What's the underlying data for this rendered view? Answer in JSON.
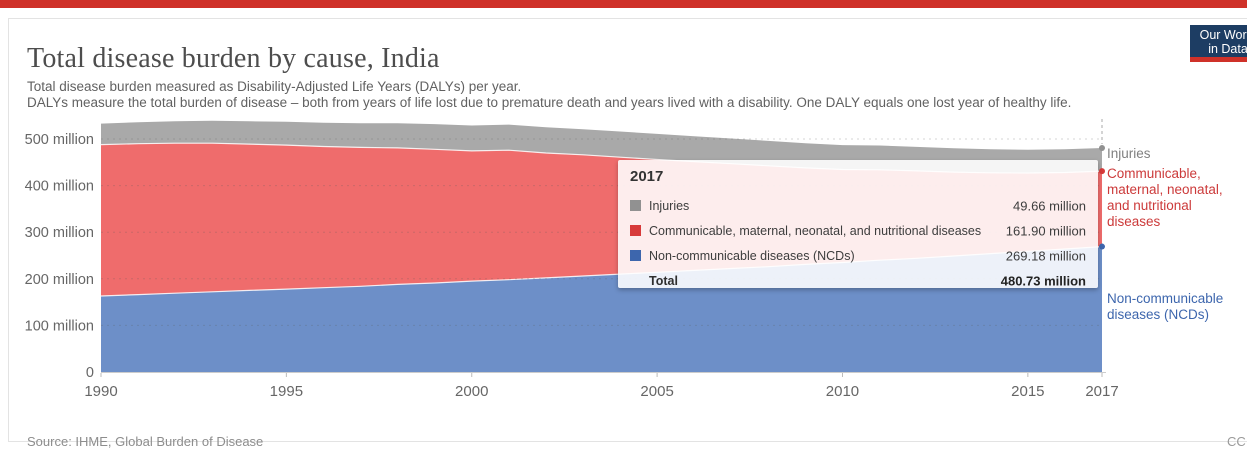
{
  "page": {
    "topbar_color": "#cf3129"
  },
  "header": {
    "title": "Total disease burden by cause, India",
    "subtitle_lines": [
      "Total disease burden measured as Disability-Adjusted Life Years (DALYs) per year.",
      "DALYs measure the total burden of disease – both from years of life lost due to premature death and years lived with a disability. One DALY equals one lost year of healthy life."
    ],
    "logo": {
      "line1": "Our World",
      "line2": "in Data",
      "bg_color": "#1d3d63",
      "accent_color": "#cf3129"
    }
  },
  "chart_data": {
    "type": "area",
    "stacked": true,
    "title": "Total disease burden by cause, India",
    "unit": "DALYs",
    "x": [
      1990,
      1991,
      1992,
      1993,
      1994,
      1995,
      1996,
      1997,
      1998,
      1999,
      2000,
      2001,
      2002,
      2003,
      2004,
      2005,
      2006,
      2007,
      2008,
      2009,
      2010,
      2011,
      2012,
      2013,
      2014,
      2015,
      2016,
      2017
    ],
    "series": [
      {
        "name": "Non-communicable diseases (NCDs)",
        "color": "#3d66ad",
        "area_color": "#6d8fc8",
        "values": [
          163,
          166,
          169,
          172,
          175,
          178,
          181,
          184,
          188,
          191,
          195,
          198,
          202,
          206,
          210,
          214,
          218,
          222,
          226,
          231,
          235,
          240,
          244,
          249,
          254,
          259,
          264,
          269.18
        ]
      },
      {
        "name": "Communicable, maternal, neonatal, and nutritional diseases",
        "color": "#d73a3a",
        "area_color": "#ef6c6c",
        "values": [
          325,
          324,
          322,
          319,
          314,
          309,
          303,
          298,
          293,
          287,
          279.5,
          278,
          268,
          260,
          251,
          242,
          233.5,
          225,
          216.5,
          207,
          199.5,
          194,
          187.5,
          180,
          173.5,
          168,
          164.2,
          161.9
        ]
      },
      {
        "name": "Injuries",
        "color": "#919191",
        "area_color": "#a9a9a9",
        "values": [
          45,
          46,
          47,
          48,
          49,
          50,
          51,
          52,
          53,
          54,
          54.5,
          55,
          55,
          55,
          55,
          55,
          54.5,
          54,
          53.5,
          53,
          52.5,
          52,
          51.5,
          51,
          50.5,
          50,
          49.8,
          49.66
        ]
      }
    ],
    "ylim": [
      0,
      540
    ],
    "yticks": [
      {
        "value": 0,
        "label": "0"
      },
      {
        "value": 100,
        "label": "100 million"
      },
      {
        "value": 200,
        "label": "200 million"
      },
      {
        "value": 300,
        "label": "300 million"
      },
      {
        "value": 400,
        "label": "400 million"
      },
      {
        "value": 500,
        "label": "500 million"
      }
    ],
    "xticks": [
      1990,
      1995,
      2000,
      2005,
      2010,
      2015,
      2017
    ],
    "grid": "dashed horizontal, on",
    "legend_position": "right",
    "hover_year": 2017
  },
  "right_labels": [
    {
      "text": "Injuries",
      "color": "#808080"
    },
    {
      "text": "Communicable, maternal, neonatal, and nutritional diseases",
      "color": "#cc3a3a"
    },
    {
      "text": "Non-communicable diseases (NCDs)",
      "color": "#3d66ad"
    }
  ],
  "tooltip": {
    "year": "2017",
    "rows": [
      {
        "label": "Injuries",
        "value": "49.66 million",
        "color": "#919191"
      },
      {
        "label": "Communicable, maternal, neonatal, and nutritional diseases",
        "value": "161.90 million",
        "color": "#d73a3a"
      },
      {
        "label": "Non-communicable diseases (NCDs)",
        "value": "269.18 million",
        "color": "#3d66ad"
      }
    ],
    "total_label": "Total",
    "total_value": "480.73 million"
  },
  "footer": {
    "source": "Source: IHME, Global Burden of Disease",
    "license": "CC BY"
  }
}
